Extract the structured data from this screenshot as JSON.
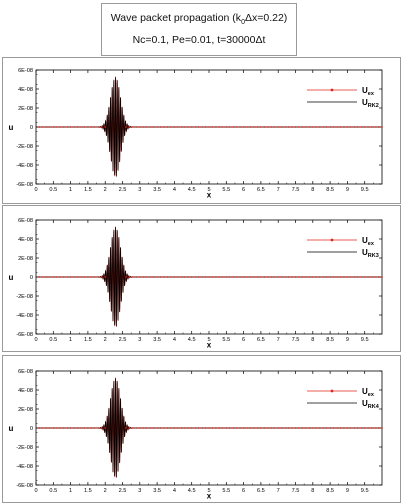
{
  "header": {
    "title_prefix": "Wave packet propagation (k",
    "title_sub": "0",
    "title_suffix": "Δx=0.22)",
    "subtitle": "Nc=0.1, Pe=0.01, t=30000Δt"
  },
  "colors": {
    "exact": "#e0271c",
    "numeric": "#000000",
    "frame": "#9a9a9a"
  },
  "chart_data": [
    {
      "type": "line",
      "xlabel": "x",
      "ylabel": "u",
      "xlim": [
        0,
        10
      ],
      "ylim": [
        -6e-08,
        6e-08
      ],
      "xticks": [
        "0",
        "0.5",
        "1",
        "1.5",
        "2",
        "2.5",
        "3",
        "3.5",
        "4",
        "4.5",
        "5",
        "5.5",
        "6",
        "6.5",
        "7",
        "7.5",
        "8",
        "8.5",
        "9",
        "9.5"
      ],
      "yticks": [
        "6E-08",
        "4E-08",
        "2E-08",
        "0",
        "-2E-08",
        "-4E-08",
        "-6E-08"
      ],
      "legend_position": "top-right",
      "packet": {
        "center": 2.3,
        "amplitude": 5.3e-08,
        "width": 0.2,
        "wavelength": 0.048
      },
      "series": [
        {
          "name": "U",
          "name_sub": "ex",
          "style": "line-with-markers"
        },
        {
          "name": "U",
          "name_sub": "RK2",
          "style": "line"
        }
      ]
    },
    {
      "type": "line",
      "xlabel": "x",
      "ylabel": "u",
      "xlim": [
        0,
        10
      ],
      "ylim": [
        -6e-08,
        6e-08
      ],
      "xticks": [
        "0",
        "0.5",
        "1",
        "1.5",
        "2",
        "2.5",
        "3",
        "3.5",
        "4",
        "4.5",
        "5",
        "5.5",
        "6",
        "6.5",
        "7",
        "7.5",
        "8",
        "8.5",
        "9",
        "9.5"
      ],
      "yticks": [
        "6E-08",
        "4E-08",
        "2E-08",
        "0",
        "-2E-08",
        "-4E-08",
        "-6E-08"
      ],
      "legend_position": "top-right",
      "packet": {
        "center": 2.3,
        "amplitude": 5.3e-08,
        "width": 0.2,
        "wavelength": 0.048
      },
      "series": [
        {
          "name": "U",
          "name_sub": "ex",
          "style": "line-with-markers"
        },
        {
          "name": "U",
          "name_sub": "RK3",
          "style": "line"
        }
      ]
    },
    {
      "type": "line",
      "xlabel": "x",
      "ylabel": "u",
      "xlim": [
        0,
        10
      ],
      "ylim": [
        -6e-08,
        6e-08
      ],
      "xticks": [
        "0",
        "0.5",
        "1",
        "1.5",
        "2",
        "2.5",
        "3",
        "3.5",
        "4",
        "4.5",
        "5",
        "5.5",
        "6",
        "6.5",
        "7",
        "7.5",
        "8",
        "8.5",
        "9",
        "9.5"
      ],
      "yticks": [
        "6E-08",
        "4E-08",
        "2E-08",
        "0",
        "-2E-08",
        "-4E-08",
        "-6E-08"
      ],
      "legend_position": "top-right",
      "packet": {
        "center": 2.3,
        "amplitude": 5.3e-08,
        "width": 0.2,
        "wavelength": 0.048
      },
      "series": [
        {
          "name": "U",
          "name_sub": "ex",
          "style": "line-with-markers"
        },
        {
          "name": "U",
          "name_sub": "RK4",
          "style": "line"
        }
      ]
    }
  ]
}
